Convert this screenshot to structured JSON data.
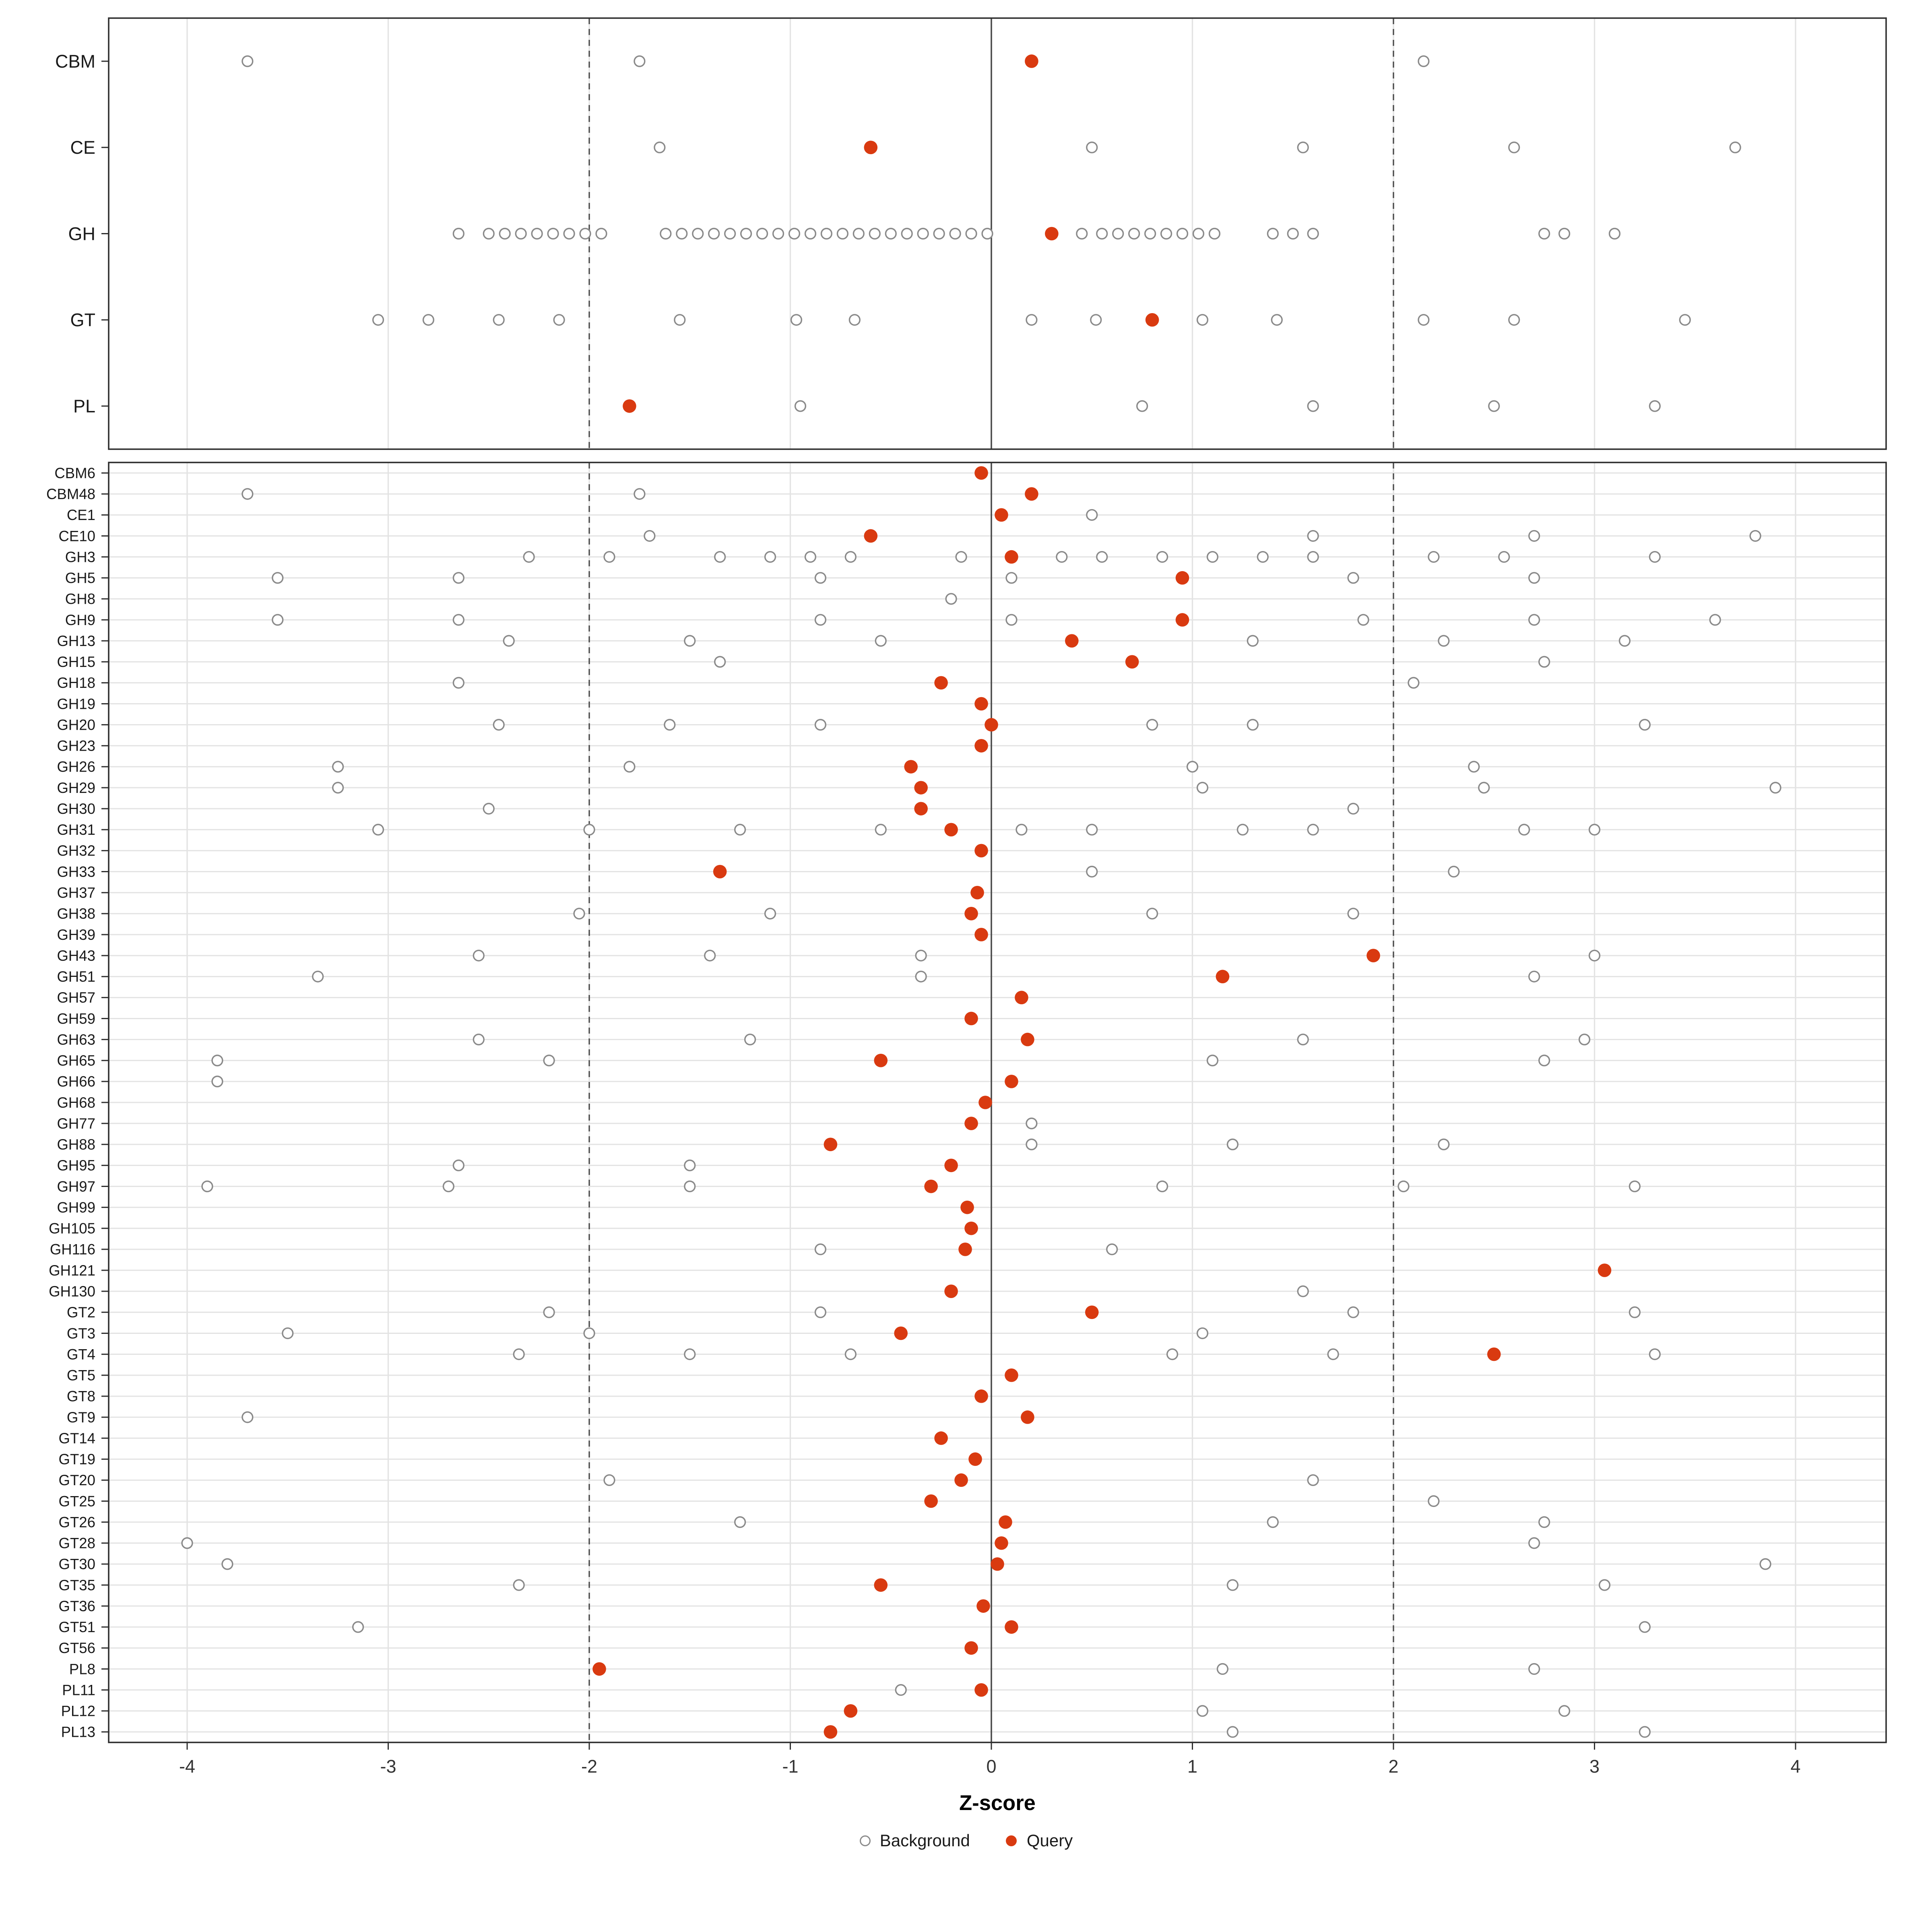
{
  "legend": {
    "background_label": "Background",
    "query_label": "Query"
  },
  "colors": {
    "query": "#d93a10",
    "background_stroke": "#8a8a8a",
    "grid": "#e3e3e3",
    "ref_line": "#4a4a4a",
    "panel_border": "#2f2f2f",
    "tick_text": "#333333",
    "label_text": "#1a1a1a"
  },
  "chart_data": {
    "type": "scatter",
    "title": "",
    "xlabel": "Z-score",
    "ylabel": "",
    "xlim": [
      -4.39,
      4.45
    ],
    "ticks": [
      -4,
      -3,
      -2,
      -1,
      0,
      1,
      2,
      3,
      4
    ],
    "tick_labels": [
      "-4",
      "-3",
      "-2",
      "-1",
      "0",
      "1",
      "2",
      "3",
      "4"
    ],
    "vlines": {
      "solid": [
        0
      ],
      "dashed": [
        -2,
        2
      ]
    },
    "legend_position": "bottom",
    "series_names": [
      "Background",
      "Query"
    ],
    "panels": [
      {
        "name": "class",
        "rows": [
          {
            "label": "CBM",
            "query": 0.2,
            "background": [
              -3.7,
              -1.75,
              2.15
            ]
          },
          {
            "label": "CE",
            "query": -0.6,
            "background": [
              -1.65,
              0.5,
              1.55,
              2.6,
              3.7
            ]
          },
          {
            "label": "GH",
            "query": 0.3,
            "background": [
              -2.65,
              -2.5,
              -2.42,
              -2.34,
              -2.26,
              -2.18,
              -2.1,
              -2.02,
              -1.94,
              -1.62,
              -1.54,
              -1.46,
              -1.38,
              -1.3,
              -1.22,
              -1.14,
              -1.06,
              -0.98,
              -0.9,
              -0.82,
              -0.74,
              -0.66,
              -0.58,
              -0.5,
              -0.42,
              -0.34,
              -0.26,
              -0.18,
              -0.1,
              -0.02,
              0.45,
              0.55,
              0.63,
              0.71,
              0.79,
              0.87,
              0.95,
              1.03,
              1.11,
              1.4,
              1.5,
              1.6,
              2.75,
              2.85,
              3.1
            ]
          },
          {
            "label": "GT",
            "query": 0.8,
            "background": [
              -3.05,
              -2.8,
              -2.45,
              -2.15,
              -1.55,
              -0.97,
              -0.68,
              0.2,
              0.52,
              1.05,
              1.42,
              2.15,
              2.6,
              3.45
            ]
          },
          {
            "label": "PL",
            "query": -1.8,
            "background": [
              -0.95,
              0.75,
              1.6,
              2.5,
              3.3
            ]
          }
        ]
      },
      {
        "name": "family",
        "rows": [
          {
            "label": "CBM6",
            "query": -0.05,
            "background": []
          },
          {
            "label": "CBM48",
            "query": 0.2,
            "background": [
              -3.7,
              -1.75
            ]
          },
          {
            "label": "CE1",
            "query": 0.05,
            "background": [
              0.5
            ]
          },
          {
            "label": "CE10",
            "query": -0.6,
            "background": [
              -1.7,
              1.6,
              2.7,
              3.8
            ]
          },
          {
            "label": "GH3",
            "query": 0.1,
            "background": [
              -2.3,
              -1.9,
              -1.35,
              -1.1,
              -0.9,
              -0.7,
              -0.15,
              0.35,
              0.55,
              0.85,
              1.1,
              1.35,
              1.6,
              2.2,
              2.55,
              3.3
            ]
          },
          {
            "label": "GH5",
            "query": 0.95,
            "background": [
              -3.55,
              -2.65,
              -0.85,
              0.1,
              1.8,
              2.7
            ]
          },
          {
            "label": "GH8",
            "query": null,
            "background": [
              -0.2
            ]
          },
          {
            "label": "GH9",
            "query": 0.95,
            "background": [
              -3.55,
              -2.65,
              -0.85,
              0.1,
              1.85,
              2.7,
              3.6
            ]
          },
          {
            "label": "GH13",
            "query": 0.4,
            "background": [
              -2.4,
              -1.5,
              -0.55,
              1.3,
              2.25,
              3.15
            ]
          },
          {
            "label": "GH15",
            "query": 0.7,
            "background": [
              -1.35,
              2.75
            ]
          },
          {
            "label": "GH18",
            "query": -0.25,
            "background": [
              -2.65,
              2.1
            ]
          },
          {
            "label": "GH19",
            "query": -0.05,
            "background": []
          },
          {
            "label": "GH20",
            "query": 0.0,
            "background": [
              -2.45,
              -1.6,
              -0.85,
              0.8,
              1.3,
              3.25
            ]
          },
          {
            "label": "GH23",
            "query": -0.05,
            "background": []
          },
          {
            "label": "GH26",
            "query": -0.4,
            "background": [
              -3.25,
              -1.8,
              1.0,
              2.4
            ]
          },
          {
            "label": "GH29",
            "query": -0.35,
            "background": [
              -3.25,
              1.05,
              2.45,
              3.9
            ]
          },
          {
            "label": "GH30",
            "query": -0.35,
            "background": [
              -2.5,
              1.8
            ]
          },
          {
            "label": "GH31",
            "query": -0.2,
            "background": [
              -3.05,
              -2.0,
              -1.25,
              -0.55,
              0.15,
              0.5,
              1.25,
              1.6,
              2.65,
              3.0
            ]
          },
          {
            "label": "GH32",
            "query": -0.05,
            "background": []
          },
          {
            "label": "GH33",
            "query": -1.35,
            "background": [
              0.5,
              2.3
            ]
          },
          {
            "label": "GH37",
            "query": -0.07,
            "background": []
          },
          {
            "label": "GH38",
            "query": -0.1,
            "background": [
              -2.05,
              -1.1,
              0.8,
              1.8
            ]
          },
          {
            "label": "GH39",
            "query": -0.05,
            "background": []
          },
          {
            "label": "GH43",
            "query": 1.9,
            "background": [
              -2.55,
              -1.4,
              -0.35,
              3.0
            ]
          },
          {
            "label": "GH51",
            "query": 1.15,
            "background": [
              -3.35,
              -0.35,
              2.7
            ]
          },
          {
            "label": "GH57",
            "query": 0.15,
            "background": []
          },
          {
            "label": "GH59",
            "query": -0.1,
            "background": []
          },
          {
            "label": "GH63",
            "query": 0.18,
            "background": [
              -2.55,
              -1.2,
              1.55,
              2.95
            ]
          },
          {
            "label": "GH65",
            "query": -0.55,
            "background": [
              -3.85,
              -2.2,
              1.1,
              2.75
            ]
          },
          {
            "label": "GH66",
            "query": 0.1,
            "background": [
              -3.85
            ]
          },
          {
            "label": "GH68",
            "query": -0.03,
            "background": []
          },
          {
            "label": "GH77",
            "query": -0.1,
            "background": [
              0.2
            ]
          },
          {
            "label": "GH88",
            "query": -0.8,
            "background": [
              0.2,
              1.2,
              2.25
            ]
          },
          {
            "label": "GH95",
            "query": -0.2,
            "background": [
              -2.65,
              -1.5
            ]
          },
          {
            "label": "GH97",
            "query": -0.3,
            "background": [
              -3.9,
              -2.7,
              -1.5,
              0.85,
              2.05,
              3.2
            ]
          },
          {
            "label": "GH99",
            "query": -0.12,
            "background": []
          },
          {
            "label": "GH105",
            "query": -0.1,
            "background": []
          },
          {
            "label": "GH116",
            "query": -0.13,
            "background": [
              -0.85,
              0.6
            ]
          },
          {
            "label": "GH121",
            "query": 3.05,
            "background": []
          },
          {
            "label": "GH130",
            "query": -0.2,
            "background": [
              1.55
            ]
          },
          {
            "label": "GT2",
            "query": 0.5,
            "background": [
              -2.2,
              -0.85,
              1.8,
              3.2
            ]
          },
          {
            "label": "GT3",
            "query": -0.45,
            "background": [
              -3.5,
              -2.0,
              1.05
            ]
          },
          {
            "label": "GT4",
            "query": 2.5,
            "background": [
              -2.35,
              -1.5,
              -0.7,
              0.9,
              1.7,
              3.3
            ]
          },
          {
            "label": "GT5",
            "query": 0.1,
            "background": []
          },
          {
            "label": "GT8",
            "query": -0.05,
            "background": []
          },
          {
            "label": "GT9",
            "query": 0.18,
            "background": [
              -3.7
            ]
          },
          {
            "label": "GT14",
            "query": -0.25,
            "background": []
          },
          {
            "label": "GT19",
            "query": -0.08,
            "background": []
          },
          {
            "label": "GT20",
            "query": -0.15,
            "background": [
              -1.9,
              1.6
            ]
          },
          {
            "label": "GT25",
            "query": -0.3,
            "background": [
              2.2
            ]
          },
          {
            "label": "GT26",
            "query": 0.07,
            "background": [
              -1.25,
              1.4,
              2.75
            ]
          },
          {
            "label": "GT28",
            "query": 0.05,
            "background": [
              -4.0,
              2.7
            ]
          },
          {
            "label": "GT30",
            "query": 0.03,
            "background": [
              -3.8,
              3.85
            ]
          },
          {
            "label": "GT35",
            "query": -0.55,
            "background": [
              -2.35,
              1.2,
              3.05
            ]
          },
          {
            "label": "GT36",
            "query": -0.04,
            "background": []
          },
          {
            "label": "GT51",
            "query": 0.1,
            "background": [
              -3.15,
              3.25
            ]
          },
          {
            "label": "GT56",
            "query": -0.1,
            "background": []
          },
          {
            "label": "PL8",
            "query": -1.95,
            "background": [
              1.15,
              2.7
            ]
          },
          {
            "label": "PL11",
            "query": -0.05,
            "background": [
              -0.45
            ]
          },
          {
            "label": "PL12",
            "query": -0.7,
            "background": [
              1.05,
              2.85
            ]
          },
          {
            "label": "PL13",
            "query": -0.8,
            "background": [
              1.2,
              3.25
            ]
          }
        ]
      }
    ]
  }
}
